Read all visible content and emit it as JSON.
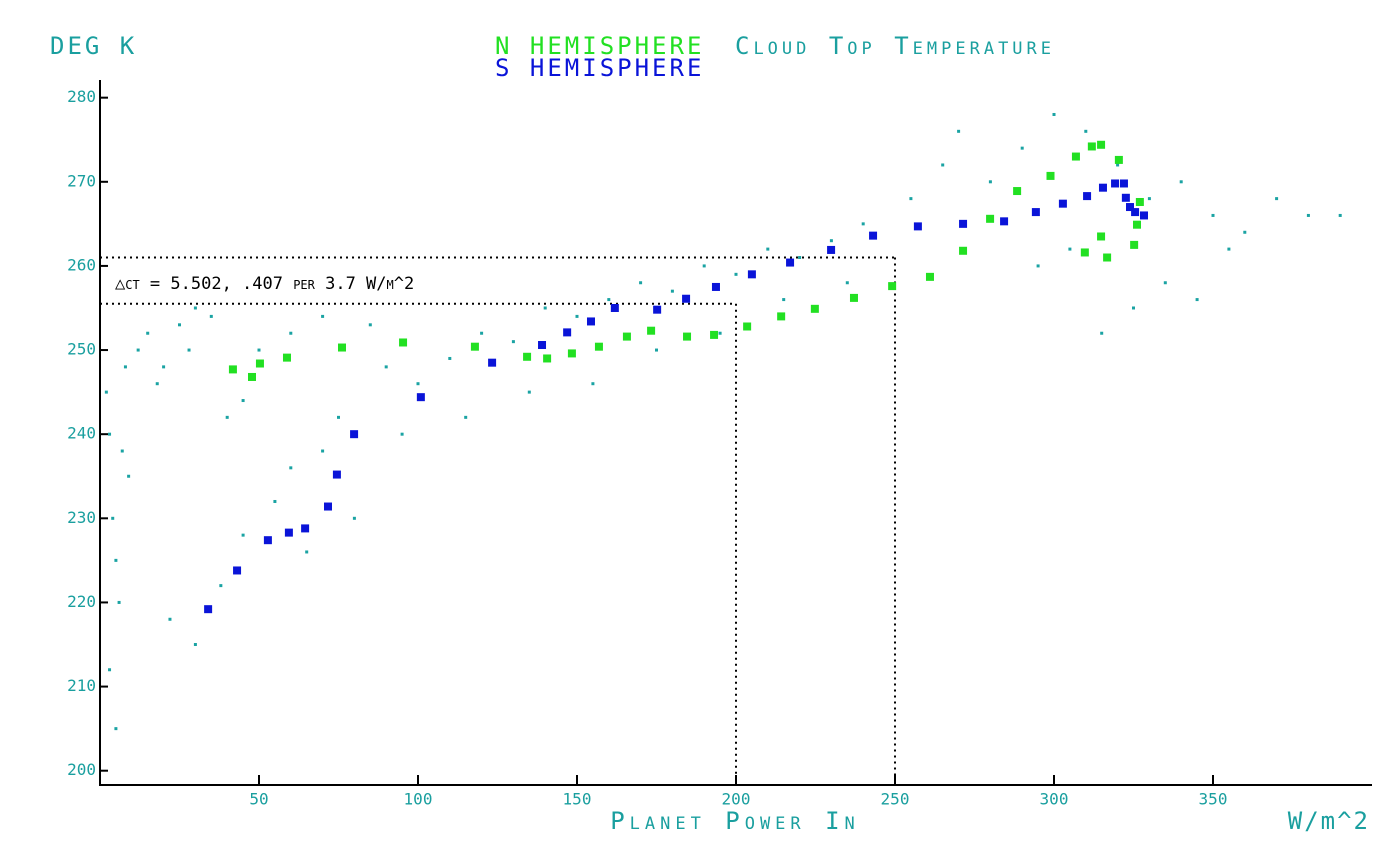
{
  "chart_data": {
    "type": "scatter",
    "title": "Cloud Top Temperature",
    "y_label": "DEG K",
    "x_label": "Planet Power In",
    "x_units": "W/m^2",
    "annotation": "△ct = 5.502, .407 per 3.7 W/m^2",
    "title_color": "#1a9f9f",
    "axis_color": "#1a9f9f",
    "xlim": [
      0,
      400
    ],
    "ylim": [
      198.3,
      282.1
    ],
    "xticks": [
      50,
      100,
      150,
      200,
      250,
      300,
      350
    ],
    "yticks": [
      200,
      210,
      220,
      230,
      240,
      250,
      260,
      270,
      280
    ],
    "reference_lines": [
      {
        "x": 200,
        "y": 255.5
      },
      {
        "x": 250,
        "y": 261
      }
    ],
    "cloud": {
      "color": "#1aa3a3",
      "x": [
        2,
        3,
        4,
        5,
        6,
        7,
        8,
        3,
        5,
        9,
        12,
        15,
        18,
        20,
        25,
        28,
        30,
        35,
        40,
        45,
        22,
        30,
        38,
        45,
        55,
        60,
        65,
        70,
        75,
        80,
        50,
        60,
        70,
        85,
        90,
        100,
        110,
        120,
        130,
        140,
        150,
        160,
        170,
        180,
        190,
        200,
        210,
        220,
        230,
        240,
        95,
        115,
        135,
        155,
        175,
        195,
        215,
        235,
        255,
        265,
        270,
        280,
        290,
        300,
        310,
        320,
        330,
        340,
        350,
        360,
        370,
        380,
        390,
        335,
        345,
        355,
        325,
        315,
        305,
        295
      ],
      "y": [
        245,
        240,
        230,
        225,
        220,
        238,
        248,
        212,
        205,
        235,
        250,
        252,
        246,
        248,
        253,
        250,
        255,
        254,
        242,
        244,
        218,
        215,
        222,
        228,
        232,
        236,
        226,
        238,
        242,
        230,
        250,
        252,
        254,
        253,
        248,
        246,
        249,
        252,
        251,
        255,
        254,
        256,
        258,
        257,
        260,
        259,
        262,
        261,
        263,
        265,
        240,
        242,
        245,
        246,
        250,
        252,
        256,
        258,
        268,
        272,
        276,
        270,
        274,
        278,
        276,
        272,
        268,
        270,
        266,
        264,
        268,
        266,
        266,
        258,
        256,
        262,
        255,
        252,
        262,
        260
      ]
    },
    "series": [
      {
        "name": "N HEMISPHERE",
        "color": "#22e022",
        "x": [
          41.8,
          47.8,
          50.3,
          58.8,
          76.1,
          95.3,
          117.9,
          134.3,
          140.6,
          148.4,
          156.9,
          165.7,
          173.3,
          184.6,
          193.1,
          203.5,
          214.2,
          224.8,
          237.1,
          249.1,
          261.0,
          271.4,
          279.9,
          288.4,
          298.9,
          306.9,
          311.9,
          314.8,
          320.4,
          309.7,
          314.8,
          316.7,
          325.2,
          326.1,
          327.0
        ],
        "values": [
          247.7,
          246.8,
          248.4,
          249.1,
          250.3,
          250.9,
          250.4,
          249.2,
          249.0,
          249.6,
          250.4,
          251.6,
          252.3,
          251.6,
          251.8,
          252.8,
          254.0,
          254.9,
          256.2,
          257.6,
          258.7,
          261.8,
          265.6,
          268.9,
          270.7,
          273.0,
          274.2,
          274.4,
          272.6,
          261.6,
          263.5,
          261.0,
          262.5,
          264.9,
          267.6
        ]
      },
      {
        "name": "S HEMISPHERE",
        "color": "#0a14d8",
        "x": [
          34.0,
          43.1,
          52.8,
          59.4,
          64.5,
          71.7,
          74.5,
          79.9,
          100.9,
          123.3,
          139.0,
          146.9,
          154.4,
          161.9,
          175.2,
          184.3,
          193.7,
          205.0,
          217.0,
          229.9,
          243.1,
          257.2,
          271.4,
          284.3,
          294.3,
          302.8,
          310.4,
          315.4,
          319.2,
          322.0,
          322.6,
          323.9,
          325.5,
          328.3
        ],
        "values": [
          219.2,
          223.8,
          227.4,
          228.3,
          228.8,
          231.4,
          235.2,
          240.0,
          244.4,
          248.5,
          250.6,
          252.1,
          253.4,
          255.0,
          254.8,
          256.1,
          257.5,
          259.0,
          260.4,
          261.9,
          263.6,
          264.7,
          265.0,
          265.3,
          266.4,
          267.4,
          268.3,
          269.3,
          269.8,
          269.8,
          268.1,
          267.0,
          266.4,
          266.0
        ]
      }
    ]
  }
}
